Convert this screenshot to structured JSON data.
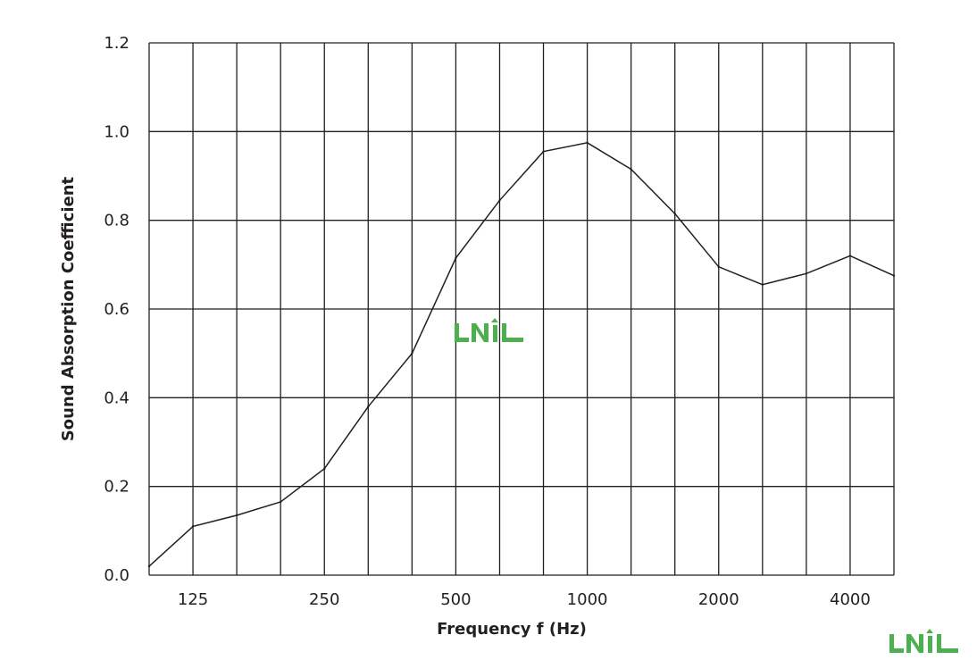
{
  "chart_data": {
    "type": "line",
    "title": "",
    "xlabel": "Frequency f (Hz)",
    "ylabel": "Sound Absorption Coefficient",
    "x_tick_labels": [
      "125",
      "250",
      "500",
      "1000",
      "2000",
      "4000"
    ],
    "x_tick_index": [
      1,
      4,
      7,
      10,
      13,
      16
    ],
    "x_grid_count": 18,
    "y_ticks": [
      0.0,
      0.2,
      0.4,
      0.6,
      0.8,
      1.0,
      1.2
    ],
    "y_tick_labels": [
      "0.0",
      "0.2",
      "0.4",
      "0.6",
      "0.8",
      "1.0",
      "1.2"
    ],
    "ylim": [
      0,
      1.2
    ],
    "grid": true,
    "legend": "none",
    "series": [
      {
        "x": [
          "100",
          "125",
          "160",
          "200",
          "250",
          "315",
          "400",
          "500",
          "630",
          "800",
          "1000",
          "1250",
          "1600",
          "2000",
          "2500",
          "3150",
          "4000",
          "5000"
        ],
        "values": [
          0.02,
          0.11,
          0.135,
          0.165,
          0.24,
          0.38,
          0.5,
          0.715,
          0.845,
          0.955,
          0.975,
          0.915,
          0.815,
          0.695,
          0.655,
          0.68,
          0.72,
          0.675
        ]
      }
    ],
    "line_color": "#231f20",
    "grid_color": "#231f20"
  },
  "watermark": {
    "text": "LNIL",
    "color": "#4caf50"
  }
}
